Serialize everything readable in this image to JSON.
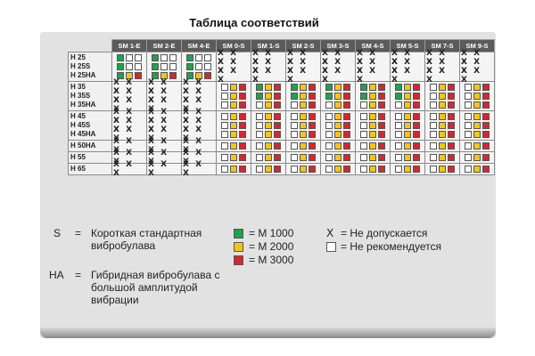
{
  "title": "Таблица соответствий",
  "colors": {
    "green": "#1fa24b",
    "yellow": "#f5c515",
    "red": "#d6262e",
    "empty": "#ffffff",
    "header_bg": "#5b5b5b"
  },
  "columns": [
    "SM 1-E",
    "SM 2-E",
    "SM 4-E",
    "SM 0-S",
    "SM 1-S",
    "SM 2-S",
    "SM 3-S",
    "SM 4-S",
    "SM 5-S",
    "SM 7-S",
    "SM 9-S"
  ],
  "row_groups": [
    {
      "labels": [
        "H 25",
        "H 25S",
        "H 25HA"
      ],
      "cells": [
        [
          "gww",
          "gww",
          "gww"
        ],
        [
          "gww",
          "gww",
          "gww"
        ],
        [
          "gyr",
          "gyr",
          "gyr"
        ]
      ],
      "rest": "X X X"
    },
    {
      "labels": [
        "H 35",
        "H 35S",
        "H 35HA"
      ],
      "first": "X X X",
      "cells": [
        [
          "wyr",
          "gyr",
          "gyr",
          "gyr",
          "gyr",
          "gyr",
          "wyr",
          "wyr"
        ],
        [
          "wyr",
          "gyr",
          "gyr",
          "gyr",
          "gyr",
          "gyr",
          "wyr",
          "wyr"
        ],
        [
          "wyr",
          "wyr",
          "wyr",
          "wyr",
          "wyr",
          "wyr",
          "wyr",
          "wyr"
        ]
      ]
    },
    {
      "labels": [
        "H 45",
        "H 45S",
        "H 45HA"
      ],
      "first": "X X X",
      "cells": [
        [
          "wyr",
          "wyr",
          "wyr",
          "wyr",
          "wyr",
          "wyr",
          "wyr",
          "wyr"
        ],
        [
          "wyr",
          "wyr",
          "wyr",
          "wyr",
          "wyr",
          "wyr",
          "wyr",
          "wyr"
        ],
        [
          "wyr",
          "wyr",
          "wyr",
          "wyr",
          "wyr",
          "wyr",
          "wyr",
          "wyr"
        ]
      ]
    },
    {
      "labels": [
        "H 50HA"
      ],
      "first": "X X X",
      "cells": [
        [
          "wyr",
          "wyr",
          "wyr",
          "wyr",
          "wyr",
          "wyr",
          "wyr",
          "wyr"
        ]
      ]
    },
    {
      "labels": [
        "H 55"
      ],
      "first": "X X X",
      "cells": [
        [
          "wyr",
          "wyr",
          "wyr",
          "wyr",
          "wyr",
          "wyr",
          "wyr",
          "wyr"
        ]
      ]
    },
    {
      "labels": [
        "H 65"
      ],
      "first": "X X X",
      "cells": [
        [
          "wyr",
          "wyr",
          "wyr",
          "wyr",
          "wyr",
          "wyr",
          "wyr",
          "wyr"
        ]
      ]
    }
  ],
  "legend": {
    "s_abbr": "S",
    "s_eq": "=",
    "s_text": "Короткая стандартная вибробулава",
    "ha_abbr": "HA",
    "ha_eq": "=",
    "ha_text": "Гибридная вибробулава с большой амплитудой вибрации",
    "m1000": "= M 1000",
    "m2000": "= M 2000",
    "m3000": "= M 3000",
    "x_symbol": "X",
    "x_text": "= Не допускается",
    "w_text": "= Не рекомендуется"
  }
}
